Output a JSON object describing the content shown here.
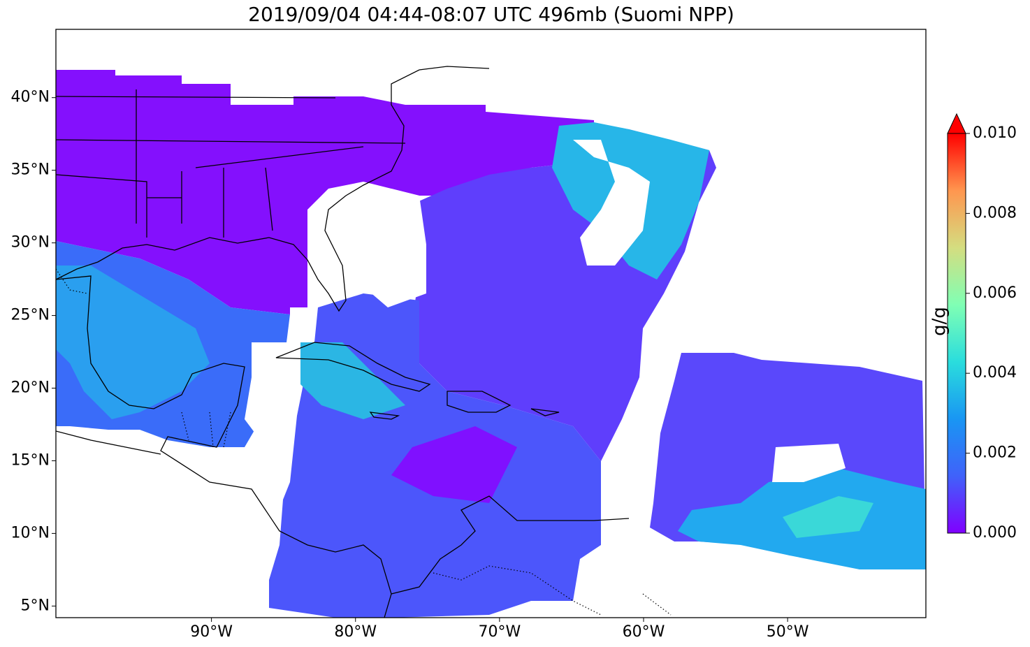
{
  "chart_data": {
    "type": "map",
    "title": "2019/09/04 04:44-08:07 UTC 496mb (Suomi NPP)",
    "xlim": [
      -100.8,
      -40.4
    ],
    "ylim": [
      4.2,
      44.7
    ],
    "xticks": [
      {
        "value": -90,
        "label": "90°W"
      },
      {
        "value": -80,
        "label": "80°W"
      },
      {
        "value": -70,
        "label": "70°W"
      },
      {
        "value": -60,
        "label": "60°W"
      },
      {
        "value": -50,
        "label": "50°W"
      }
    ],
    "yticks": [
      {
        "value": 5,
        "label": "5°N"
      },
      {
        "value": 10,
        "label": "10°N"
      },
      {
        "value": 15,
        "label": "15°N"
      },
      {
        "value": 20,
        "label": "20°N"
      },
      {
        "value": 25,
        "label": "25°N"
      },
      {
        "value": 30,
        "label": "30°N"
      },
      {
        "value": 35,
        "label": "35°N"
      },
      {
        "value": 40,
        "label": "40°N"
      }
    ],
    "colorbar": {
      "label": "g/g",
      "lim": [
        0,
        0.01
      ],
      "extend": "max",
      "colors": [
        "#8000ff",
        "#4062fa",
        "#1996f3",
        "#2adddd",
        "#80ffb4",
        "#d4dd80",
        "#ff964f",
        "#ff0000"
      ],
      "ticks": [
        {
          "value": 0,
          "label": "0.000"
        },
        {
          "value": 0.002,
          "label": "0.002"
        },
        {
          "value": 0.004,
          "label": "0.004"
        },
        {
          "value": 0.006,
          "label": "0.006"
        },
        {
          "value": 0.008,
          "label": "0.008"
        },
        {
          "value": 0.01,
          "label": "0.010"
        }
      ]
    }
  }
}
